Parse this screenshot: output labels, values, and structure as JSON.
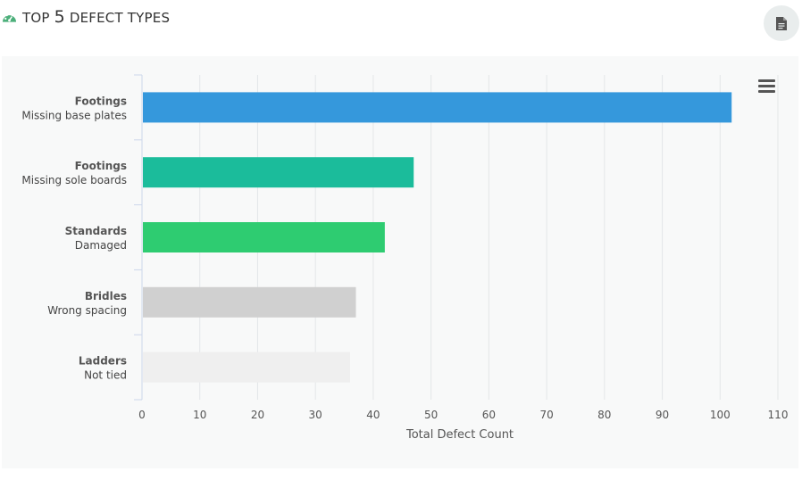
{
  "header": {
    "title_prefix": "TOP ",
    "title_number": "5",
    "title_suffix": " DEFECT TYPES",
    "icon": "dashboard-icon",
    "icon_color": "#4caf7a"
  },
  "export_button": {
    "icon": "document-icon"
  },
  "chart_menu": {
    "icon": "hamburger-menu-icon"
  },
  "chart_data": {
    "type": "bar",
    "orientation": "horizontal",
    "categories": [
      {
        "group": "Footings",
        "name": "Missing base plates"
      },
      {
        "group": "Footings",
        "name": "Missing sole boards"
      },
      {
        "group": "Standards",
        "name": "Damaged"
      },
      {
        "group": "Bridles",
        "name": "Wrong spacing"
      },
      {
        "group": "Ladders",
        "name": "Not tied"
      }
    ],
    "values": [
      102,
      47,
      42,
      37,
      36
    ],
    "colors": [
      "#3598dc",
      "#1bbc9b",
      "#2ecc71",
      "#d0d0d0",
      "#efefef"
    ],
    "xlabel": "Total Defect Count",
    "ylabel": "",
    "xlim": [
      0,
      110
    ],
    "xticks": [
      0,
      10,
      20,
      30,
      40,
      50,
      60,
      70,
      80,
      90,
      100,
      110
    ],
    "grid": true,
    "legend": "none"
  }
}
